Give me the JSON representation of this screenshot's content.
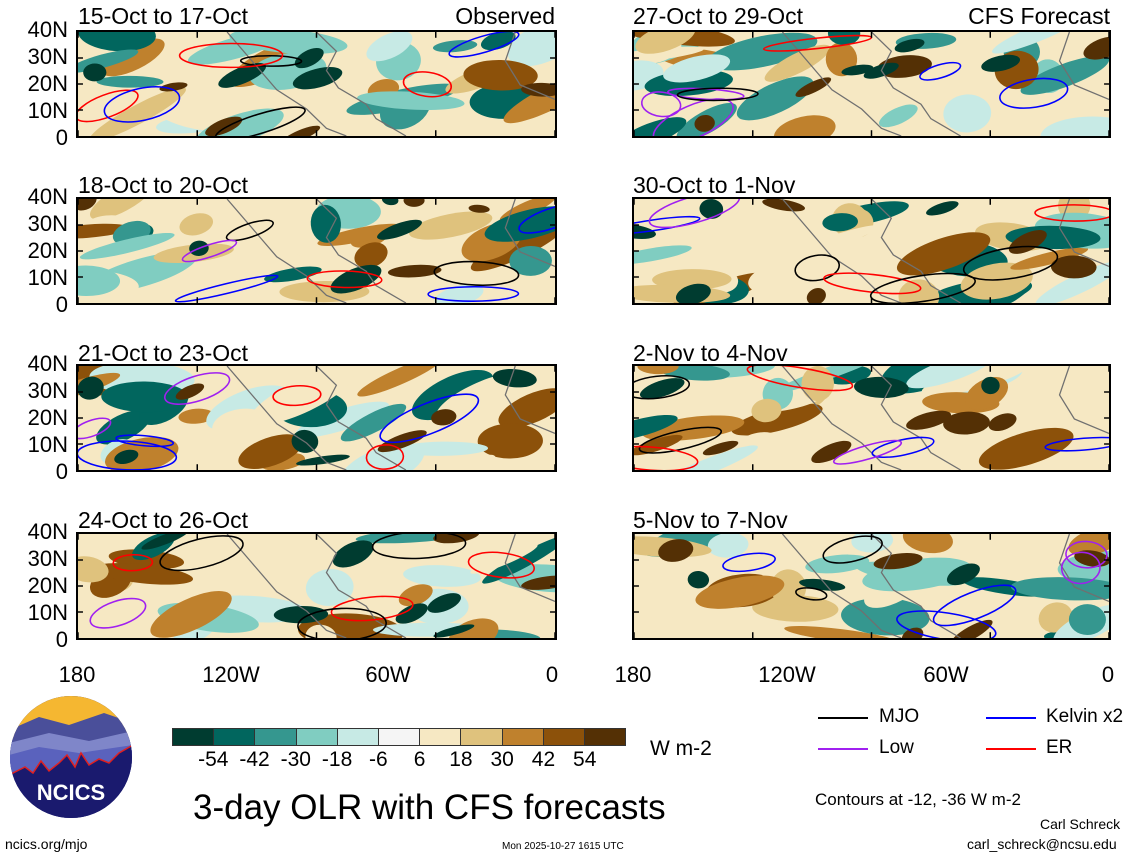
{
  "figure": {
    "title": "3-day OLR with CFS forecasts",
    "units": "W m-2",
    "contour_note": "Contours at -12, -36 W m-2",
    "author": "Carl Schreck",
    "email": "carl_schreck@ncsu.edu",
    "url": "ncics.org/mjo",
    "timestamp": "Mon 2025-10-27 1615 UTC",
    "logo_text": "NCICS"
  },
  "columns": [
    {
      "tag": "Observed",
      "panels": [
        "15-Oct to 17-Oct",
        "18-Oct to 20-Oct",
        "21-Oct to 23-Oct",
        "24-Oct to 26-Oct"
      ]
    },
    {
      "tag": "CFS Forecast",
      "panels": [
        "27-Oct to 29-Oct",
        "30-Oct to 1-Nov",
        "2-Nov to 4-Nov",
        "5-Nov to 7-Nov"
      ]
    }
  ],
  "axes": {
    "lat_ticks": [
      "40N",
      "30N",
      "20N",
      "10N",
      "0"
    ],
    "lon_ticks": [
      "180",
      "120W",
      "60W",
      "0"
    ]
  },
  "colorbar": {
    "labels": [
      "-54",
      "-42",
      "-30",
      "-18",
      "-6",
      "6",
      "18",
      "30",
      "42",
      "54"
    ],
    "colors": [
      "#003c30",
      "#01665e",
      "#35978f",
      "#80cdc1",
      "#c7eae5",
      "#f5f5f5",
      "#f6e8c3",
      "#dfc27d",
      "#bf812d",
      "#8c510a",
      "#543005"
    ]
  },
  "legend": [
    {
      "label": "MJO",
      "color": "#000000"
    },
    {
      "label": "Kelvin x2",
      "color": "#0000ff"
    },
    {
      "label": "Low",
      "color": "#a020f0"
    },
    {
      "label": "ER",
      "color": "#ff0000"
    }
  ]
}
